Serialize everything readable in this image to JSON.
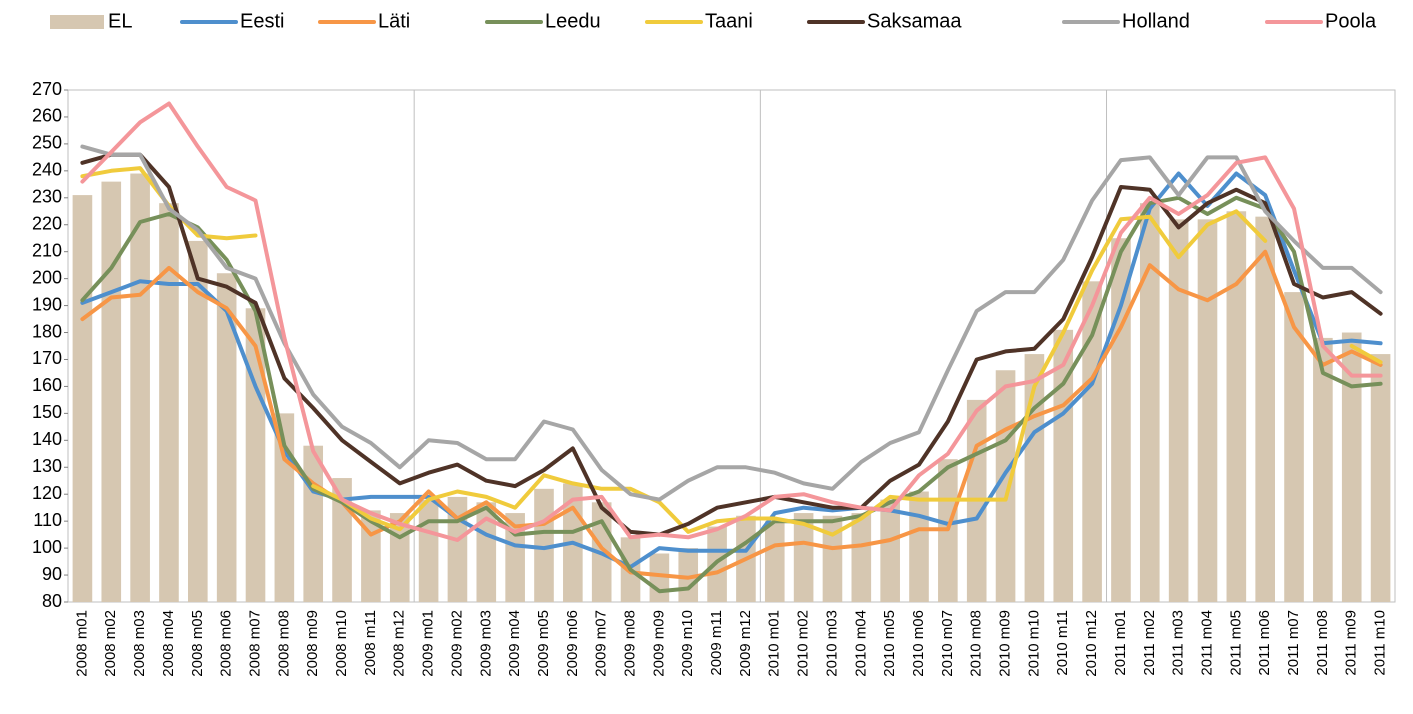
{
  "chart_data": {
    "type": "combo",
    "categories": [
      "2008 m01",
      "2008 m02",
      "2008 m03",
      "2008 m04",
      "2008 m05",
      "2008 m06",
      "2008 m07",
      "2008 m08",
      "2008 m09",
      "2008 m10",
      "2008 m11",
      "2008 m12",
      "2009 m01",
      "2009 m02",
      "2009 m03",
      "2009 m04",
      "2009 m05",
      "2009 m06",
      "2009 m07",
      "2009 m08",
      "2009 m09",
      "2009 m10",
      "2009 m11",
      "2009 m12",
      "2010 m01",
      "2010 m02",
      "2010 m03",
      "2010 m04",
      "2010 m05",
      "2010 m06",
      "2010 m07",
      "2010 m08",
      "2010 m09",
      "2010 m10",
      "2010 m11",
      "2010 m12",
      "2011 m01",
      "2011 m02",
      "2011 m03",
      "2011 m04",
      "2011 m05",
      "2011 m06",
      "2011 m07",
      "2011 m08",
      "2011 m09",
      "2011 m10"
    ],
    "series": [
      {
        "name": "EL",
        "type": "bar",
        "color": "#d6c7b1",
        "values": [
          231,
          236,
          239,
          228,
          214,
          202,
          189,
          150,
          138,
          126,
          114,
          113,
          118,
          119,
          117,
          113,
          122,
          124,
          117,
          104,
          98,
          100,
          108,
          112,
          110,
          113,
          112,
          113,
          118,
          121,
          133,
          155,
          166,
          172,
          181,
          199,
          215,
          228,
          222,
          222,
          225,
          223,
          195,
          178,
          180,
          172
        ]
      },
      {
        "name": "Eesti",
        "type": "line",
        "color": "#4e8fcd",
        "values": [
          191,
          195,
          199,
          198,
          198,
          188,
          160,
          136,
          121,
          118,
          119,
          119,
          119,
          111,
          105,
          101,
          100,
          102,
          98,
          93,
          100,
          99,
          99,
          99,
          113,
          115,
          114,
          115,
          114,
          112,
          109,
          111,
          128,
          143,
          150,
          161,
          190,
          226,
          239,
          227,
          239,
          231,
          203,
          176,
          177,
          176
        ]
      },
      {
        "name": "Läti",
        "type": "line",
        "color": "#f79646",
        "values": [
          185,
          193,
          194,
          204,
          195,
          189,
          175,
          133,
          124,
          117,
          105,
          110,
          121,
          111,
          117,
          108,
          109,
          115,
          100,
          91,
          90,
          89,
          91,
          96,
          101,
          102,
          100,
          101,
          103,
          107,
          107,
          138,
          144,
          149,
          153,
          163,
          182,
          205,
          196,
          192,
          198,
          210,
          182,
          168,
          173,
          168
        ]
      },
      {
        "name": "Leedu",
        "type": "line",
        "color": "#77905a",
        "values": [
          192,
          204,
          221,
          224,
          219,
          207,
          188,
          138,
          122,
          117,
          110,
          104,
          110,
          110,
          115,
          105,
          106,
          106,
          110,
          92,
          84,
          85,
          95,
          102,
          110,
          110,
          110,
          112,
          117,
          121,
          130,
          135,
          140,
          152,
          161,
          179,
          210,
          228,
          230,
          224,
          230,
          226,
          210,
          165,
          160,
          161
        ]
      },
      {
        "name": "Taani",
        "type": "line",
        "color": "#f0cb3c",
        "values": [
          238,
          240,
          241,
          227,
          216,
          215,
          216,
          null,
          123,
          118,
          111,
          107,
          118,
          121,
          119,
          115,
          127,
          124,
          122,
          122,
          117,
          106,
          110,
          111,
          111,
          109,
          105,
          111,
          119,
          118,
          118,
          118,
          118,
          160,
          180,
          203,
          222,
          223,
          208,
          220,
          225,
          214,
          null,
          null,
          175,
          169
        ]
      },
      {
        "name": "Saksamaa",
        "type": "line",
        "color": "#4f3327",
        "values": [
          243,
          246,
          246,
          234,
          200,
          197,
          191,
          163,
          152,
          140,
          132,
          124,
          128,
          131,
          125,
          123,
          129,
          137,
          115,
          106,
          105,
          109,
          115,
          117,
          119,
          117,
          115,
          115,
          125,
          131,
          147,
          170,
          173,
          174,
          185,
          208,
          234,
          233,
          219,
          228,
          233,
          228,
          198,
          193,
          195,
          187
        ]
      },
      {
        "name": "Holland",
        "type": "line",
        "color": "#a6a6a6",
        "values": [
          249,
          246,
          246,
          226,
          218,
          204,
          200,
          176,
          157,
          145,
          139,
          130,
          140,
          139,
          133,
          133,
          147,
          144,
          129,
          120,
          118,
          125,
          130,
          130,
          128,
          124,
          122,
          132,
          139,
          143,
          166,
          188,
          195,
          195,
          207,
          229,
          244,
          245,
          231,
          245,
          245,
          225,
          214,
          204,
          204,
          195
        ]
      },
      {
        "name": "Poola",
        "type": "line",
        "color": "#f4969a",
        "values": [
          236,
          247,
          258,
          265,
          249,
          234,
          229,
          178,
          136,
          118,
          113,
          109,
          106,
          103,
          111,
          106,
          110,
          118,
          119,
          104,
          105,
          104,
          107,
          112,
          119,
          120,
          117,
          115,
          114,
          127,
          135,
          151,
          160,
          162,
          168,
          190,
          217,
          230,
          224,
          231,
          243,
          245,
          226,
          175,
          164,
          164
        ]
      }
    ],
    "ylim": [
      80,
      270
    ],
    "yticks": [
      80,
      90,
      100,
      110,
      120,
      130,
      140,
      150,
      160,
      170,
      180,
      190,
      200,
      210,
      220,
      230,
      240,
      250,
      260,
      270
    ],
    "legend": "top"
  }
}
